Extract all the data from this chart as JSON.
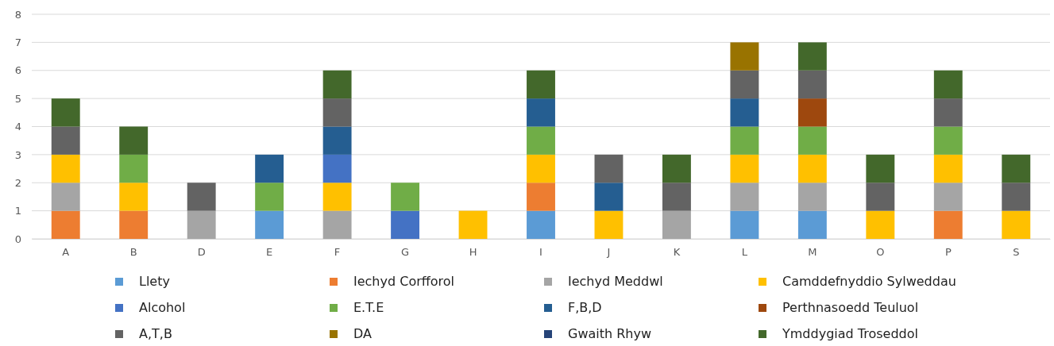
{
  "chart_data": {
    "type": "bar",
    "stacked": true,
    "categories": [
      "A",
      "B",
      "D",
      "E",
      "F",
      "G",
      "H",
      "I",
      "J",
      "K",
      "L",
      "M",
      "O",
      "P",
      "S"
    ],
    "ylim": [
      0,
      8
    ],
    "yticks": [
      0,
      1,
      2,
      3,
      4,
      5,
      6,
      7,
      8
    ],
    "grid": "y",
    "legend": "bottom",
    "series": [
      {
        "name": "Llety",
        "color": "#5b9bd5",
        "values": [
          null,
          null,
          null,
          1,
          null,
          null,
          null,
          1,
          null,
          null,
          1,
          1,
          null,
          null,
          null
        ]
      },
      {
        "name": "Iechyd Corfforol",
        "color": "#ed7d31",
        "values": [
          1,
          1,
          null,
          null,
          null,
          null,
          null,
          1,
          null,
          null,
          null,
          null,
          null,
          1,
          null
        ]
      },
      {
        "name": "Iechyd Meddwl",
        "color": "#a5a5a5",
        "values": [
          1,
          null,
          1,
          null,
          1,
          null,
          null,
          null,
          null,
          1,
          1,
          1,
          null,
          1,
          null
        ]
      },
      {
        "name": "Camddefnyddio Sylweddau",
        "color": "#ffc000",
        "values": [
          1,
          1,
          null,
          null,
          1,
          null,
          1,
          1,
          1,
          null,
          1,
          1,
          1,
          1,
          1
        ]
      },
      {
        "name": "Alcohol",
        "color": "#4472c4",
        "values": [
          null,
          null,
          null,
          null,
          1,
          1,
          null,
          null,
          null,
          null,
          null,
          null,
          null,
          null,
          null
        ]
      },
      {
        "name": "E.T.E",
        "color": "#70ad47",
        "values": [
          null,
          1,
          null,
          1,
          null,
          1,
          null,
          1,
          null,
          null,
          1,
          1,
          null,
          1,
          null
        ]
      },
      {
        "name": "F,B,D",
        "color": "#255e91",
        "values": [
          null,
          null,
          null,
          1,
          1,
          null,
          null,
          1,
          1,
          null,
          1,
          null,
          null,
          null,
          null
        ]
      },
      {
        "name": "Perthnasoedd Teuluol",
        "color": "#9e480e",
        "values": [
          null,
          null,
          null,
          null,
          null,
          null,
          null,
          null,
          null,
          null,
          null,
          1,
          null,
          null,
          null
        ]
      },
      {
        "name": "A,T,B",
        "color": "#636363",
        "values": [
          1,
          null,
          1,
          null,
          1,
          null,
          null,
          null,
          1,
          1,
          1,
          1,
          1,
          1,
          1
        ]
      },
      {
        "name": "DA",
        "color": "#997300",
        "values": [
          null,
          null,
          null,
          null,
          null,
          null,
          null,
          null,
          null,
          null,
          1,
          null,
          null,
          null,
          null
        ]
      },
      {
        "name": "Gwaith Rhyw",
        "color": "#264478",
        "values": [
          null,
          null,
          null,
          null,
          null,
          null,
          null,
          null,
          null,
          null,
          null,
          null,
          null,
          null,
          null
        ]
      },
      {
        "name": "Ymddygiad Troseddol",
        "color": "#43682b",
        "values": [
          1,
          1,
          null,
          null,
          1,
          null,
          null,
          1,
          null,
          1,
          null,
          1,
          1,
          1,
          1
        ]
      }
    ]
  }
}
